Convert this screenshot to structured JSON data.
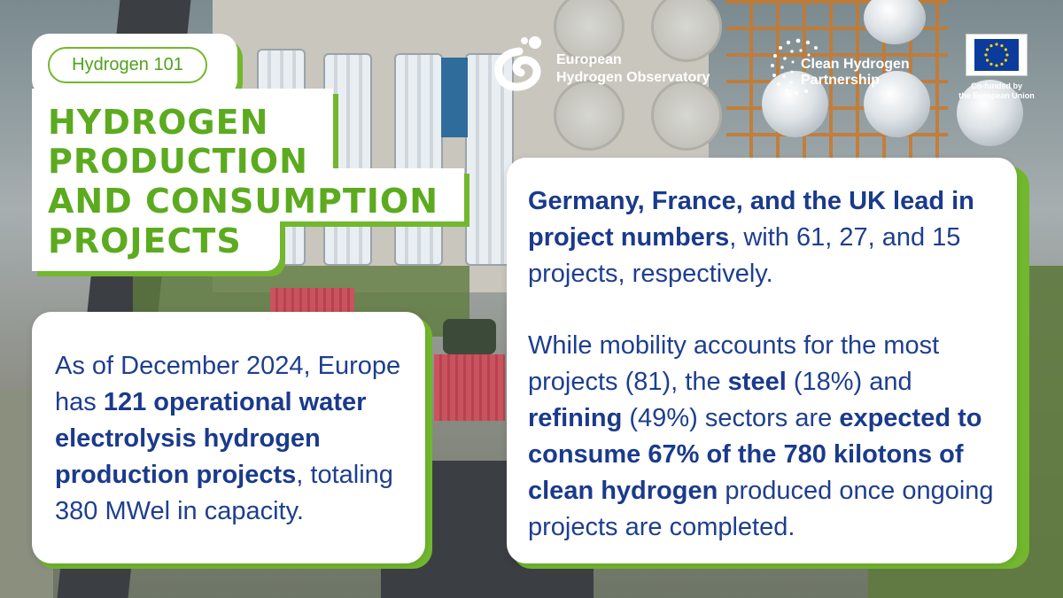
{
  "badge": "Hydrogen 101",
  "title": {
    "line1": "HYDROGEN",
    "line2": "PRODUCTION",
    "line3": "AND CONSUMPTION",
    "line4": "PROJECTS"
  },
  "logos": {
    "observatory_line1": "European",
    "observatory_line2": "Hydrogen Observatory",
    "partnership_line1": "Clean Hydrogen",
    "partnership_line2": "Partnership",
    "eu_line1": "Co-funded by",
    "eu_line2": "the European Union"
  },
  "left_card": {
    "p1": "As of December 2024, Europe has ",
    "b1": "121 operational water electrolysis hydrogen production projects",
    "p2": ", totaling 380 MWel in capacity."
  },
  "right_card": {
    "para1": {
      "b1": "Germany, France, and the UK lead in project numbers",
      "p1": ", with 61, 27, and 15 projects, respectively."
    },
    "para2": {
      "p1": "While mobility accounts for the most projects (81), the ",
      "b1": "steel",
      "p2": " (18%) and ",
      "b2": "refining",
      "p3": " (49%) sectors are ",
      "b3": "expected to consume 67% of the 780 kilotons of clean hydrogen",
      "p4": " produced once ongoing projects are completed."
    }
  },
  "colors": {
    "accent_green": "#72b72e",
    "title_green": "#5cab1f",
    "text_blue": "#1e3f8f"
  }
}
